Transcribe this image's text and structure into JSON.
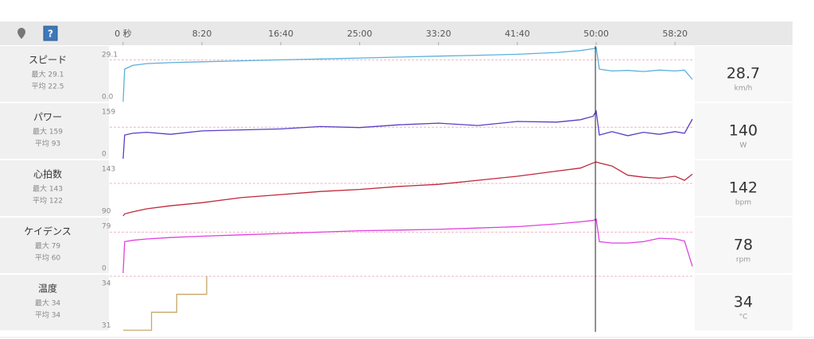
{
  "chart_data": [
    {
      "type": "line",
      "name": "スピード",
      "max": {
        "value": 29.1,
        "label": "最大 29.1"
      },
      "avg": {
        "value": 22.5,
        "label": "平均 22.5"
      },
      "current": 28.7,
      "unit": "km/h",
      "color": "#5ab0dc",
      "xlim": [
        -85,
        3620
      ],
      "ylim": [
        0,
        29.1
      ],
      "yticks": [
        29.1,
        {
          "value": 0,
          "label": "0.0"
        }
      ],
      "xticks": [
        {
          "value": 0,
          "label": "0 秒"
        },
        {
          "value": 500,
          "label": "8:20"
        },
        {
          "value": 1000,
          "label": "16:40"
        },
        {
          "value": 1500,
          "label": "25:00"
        },
        {
          "value": 2000,
          "label": "33:20"
        },
        {
          "value": 2500,
          "label": "41:40"
        },
        {
          "value": 3000,
          "label": "50:00"
        },
        {
          "value": 3500,
          "label": "58:20"
        }
      ],
      "cursor": 2995,
      "x": [
        0,
        10,
        60,
        150,
        300,
        500,
        750,
        1000,
        1250,
        1500,
        1750,
        2000,
        2250,
        2500,
        2750,
        2900,
        2980,
        3000,
        3020,
        3100,
        3200,
        3300,
        3400,
        3500,
        3560,
        3610
      ],
      "values": [
        0,
        17.5,
        19.5,
        20.5,
        21,
        21.5,
        22,
        22.5,
        23,
        23.5,
        24,
        24.5,
        25,
        25.5,
        26.5,
        27.5,
        28.5,
        29.1,
        17.5,
        16.5,
        16.8,
        16.2,
        17,
        16.5,
        17,
        12
      ]
    },
    {
      "type": "line",
      "name": "パワー",
      "max": {
        "value": 159,
        "label": "最大 159"
      },
      "avg": {
        "value": 93,
        "label": "平均 93"
      },
      "current": 140,
      "unit": "W",
      "color": "#5b3cc4",
      "xlim": [
        -85,
        3620
      ],
      "ylim": [
        0,
        159
      ],
      "yticks": [
        159,
        0
      ],
      "x": [
        0,
        10,
        60,
        150,
        300,
        500,
        750,
        1000,
        1250,
        1500,
        1750,
        2000,
        2250,
        2500,
        2750,
        2900,
        2980,
        3000,
        3020,
        3100,
        3200,
        3300,
        3400,
        3500,
        3560,
        3610
      ],
      "values": [
        0,
        70,
        75,
        78,
        72,
        82,
        85,
        88,
        95,
        92,
        100,
        105,
        98,
        110,
        108,
        115,
        125,
        140,
        70,
        80,
        68,
        78,
        72,
        80,
        75,
        117
      ]
    },
    {
      "type": "line",
      "name": "心拍数",
      "max": {
        "value": 143,
        "label": "最大 143"
      },
      "avg": {
        "value": 122,
        "label": "平均 122"
      },
      "current": 142,
      "unit": "bpm",
      "color": "#c0283c",
      "xlim": [
        -85,
        3620
      ],
      "ylim": [
        90,
        143
      ],
      "yticks": [
        143,
        90
      ],
      "x": [
        0,
        10,
        60,
        150,
        300,
        500,
        750,
        1000,
        1250,
        1500,
        1750,
        2000,
        2250,
        2500,
        2750,
        2900,
        2980,
        3000,
        3020,
        3100,
        3200,
        3300,
        3400,
        3500,
        3560,
        3610
      ],
      "values": [
        90,
        92,
        94,
        97,
        100,
        103,
        108,
        111,
        114,
        116,
        119,
        121,
        125,
        129,
        134,
        137,
        142,
        143,
        142,
        139,
        130,
        128,
        127,
        129,
        125,
        131
      ]
    },
    {
      "type": "line",
      "name": "ケイデンス",
      "max": {
        "value": 79,
        "label": "最大 79"
      },
      "avg": {
        "value": 60,
        "label": "平均 60"
      },
      "current": 78,
      "unit": "rpm",
      "color": "#e040e0",
      "xlim": [
        -85,
        3620
      ],
      "ylim": [
        0,
        79
      ],
      "yticks": [
        79,
        0
      ],
      "x": [
        0,
        10,
        60,
        150,
        300,
        500,
        750,
        1000,
        1250,
        1500,
        1750,
        2000,
        2250,
        2500,
        2750,
        2900,
        2980,
        3000,
        3020,
        3100,
        3200,
        3300,
        3400,
        3500,
        3560,
        3610
      ],
      "values": [
        0,
        46,
        48,
        50,
        52,
        54,
        56,
        58,
        60,
        62,
        63,
        64,
        66,
        68,
        72,
        75,
        77,
        79,
        46,
        44,
        44,
        46,
        51,
        50,
        47,
        10
      ]
    },
    {
      "type": "line",
      "name": "温度",
      "max": {
        "value": 34,
        "label": "最大 34"
      },
      "avg": {
        "value": 34,
        "label": "平均 34"
      },
      "current": 34,
      "unit": "°C",
      "color": "#c8a868",
      "xlim": [
        -85,
        3620
      ],
      "ylim": [
        31,
        34
      ],
      "yticks": [
        34,
        31
      ],
      "x": [
        0,
        180,
        180,
        340,
        340,
        530,
        530
      ],
      "values": [
        31,
        31,
        32,
        32,
        33,
        33,
        34
      ]
    }
  ]
}
